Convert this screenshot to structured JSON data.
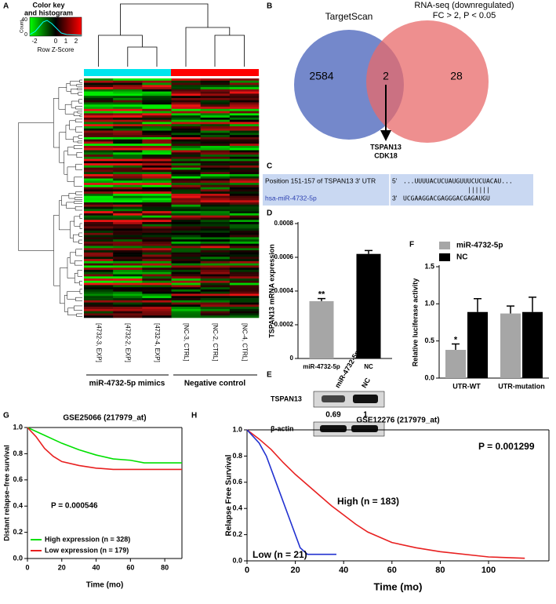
{
  "panel_labels": [
    "A",
    "B",
    "C",
    "D",
    "E",
    "F",
    "G",
    "H"
  ],
  "heatmap": {
    "color_key_title": [
      "Color key",
      "and histogram"
    ],
    "count_label": "Count",
    "count_ticks": [
      0,
      40
    ],
    "key_ticks": [
      "-2",
      "0",
      "1",
      "2"
    ],
    "key_label": "Row Z-Score",
    "columns": [
      "[4732-3, EXP]",
      "[4732-2, EXP]",
      "[4732-4, EXP]",
      "[NC-3, CTRL]",
      "[NC-2, CTRL]",
      "[NC-4, CTRL]"
    ],
    "groups": [
      "miR-4732-5p mimics",
      "Negative control"
    ]
  },
  "venn": {
    "left_label": "TargetScan",
    "right_label": [
      "RNA-seq (downregulated)",
      "FC > 2, P < 0.05"
    ],
    "left_only": 2584,
    "overlap": 2,
    "right_only": 28,
    "genes": [
      "TSPAN13",
      "CDK18"
    ]
  },
  "alignment": {
    "top_label": "Position 151-157 of TSPAN13 3' UTR",
    "top_end": "5'",
    "top_seq": "...UUUUACUCUAUGUUUCUCUACAU...",
    "pairing": "||||||",
    "bottom_label": "hsa-miR-4732-5p",
    "bottom_end": "3'",
    "bottom_seq": "UCGAAGGACGAGGGACGAGAUGU"
  },
  "western_blot": {
    "lanes": [
      "miR-4732-5p",
      "NC"
    ],
    "rows": [
      "TSPAN13",
      "β-actin"
    ],
    "ratios": [
      0.69,
      1
    ]
  },
  "chart_data": [
    {
      "type": "bar",
      "ylabel": "TSPAN13 mRNA expression",
      "categories": [
        "miR-4732-5p",
        "NC"
      ],
      "values": [
        0.00034,
        0.00062
      ],
      "errors": [
        1.5e-05,
        2e-05
      ],
      "colors": [
        "#a6a6a6",
        "#000000"
      ],
      "significance": [
        "**",
        null
      ],
      "ylim": [
        0,
        0.0008
      ],
      "yticks": [
        0,
        0.0002,
        0.0004,
        0.0006,
        0.0008
      ]
    },
    {
      "type": "bar",
      "ylabel": "Relative luciferase activity",
      "categories": [
        "UTR-WT",
        "UTR-mutation"
      ],
      "series": [
        {
          "name": "miR-4732-5p",
          "color": "#a6a6a6",
          "values": [
            0.38,
            0.87
          ],
          "errors": [
            0.08,
            0.1
          ],
          "significance": [
            "*",
            null
          ]
        },
        {
          "name": "NC",
          "color": "#000000",
          "values": [
            0.89,
            0.89
          ],
          "errors": [
            0.18,
            0.2
          ]
        }
      ],
      "ylim": [
        0,
        1.5
      ],
      "yticks": [
        {
          "value": 0,
          "label": "0.0"
        },
        0.5,
        {
          "value": 1,
          "label": "1.0"
        },
        1.5
      ],
      "legend": "upper left"
    },
    {
      "type": "line",
      "title": "GSE25066 (217979_at)",
      "xlabel": "Time (mo)",
      "ylabel": "Distant relapse–free survival",
      "annotation": "P = 0.000546",
      "series": [
        {
          "name": "High expression (n = 328)",
          "color": "#00e000",
          "x": [
            0,
            5,
            10,
            20,
            30,
            40,
            50,
            60,
            68,
            90
          ],
          "values": [
            1,
            0.97,
            0.94,
            0.88,
            0.83,
            0.79,
            0.76,
            0.75,
            0.73,
            0.73
          ]
        },
        {
          "name": "Low expression (n = 179)",
          "color": "#e82020",
          "x": [
            0,
            5,
            10,
            15,
            20,
            30,
            40,
            50,
            90
          ],
          "values": [
            1,
            0.93,
            0.84,
            0.78,
            0.74,
            0.71,
            0.69,
            0.68,
            0.68
          ]
        }
      ],
      "xlim": [
        0,
        90
      ],
      "xticks": [
        0,
        20,
        40,
        60,
        80
      ],
      "ylim": [
        0,
        1
      ],
      "yticks": [
        {
          "value": 0,
          "label": "0.0"
        },
        0.2,
        0.4,
        0.6,
        0.8,
        {
          "value": 1,
          "label": "1.0"
        }
      ],
      "legend": "lower left"
    },
    {
      "type": "line",
      "title": "GSE12276 (217979_at)",
      "xlabel": "Time (mo)",
      "ylabel": "Relapse Free Survival",
      "annotation": "P = 0.001299",
      "series": [
        {
          "name": "High (n = 183)",
          "color": "#e82020",
          "x": [
            0,
            5,
            10,
            15,
            20,
            25,
            30,
            35,
            40,
            45,
            50,
            60,
            70,
            80,
            100,
            115
          ],
          "values": [
            1,
            0.93,
            0.85,
            0.75,
            0.66,
            0.58,
            0.5,
            0.42,
            0.35,
            0.28,
            0.22,
            0.14,
            0.1,
            0.07,
            0.03,
            0.02
          ]
        },
        {
          "name": "Low (n = 21)",
          "color": "#2030d0",
          "x": [
            0,
            5,
            8,
            10,
            12,
            15,
            18,
            20,
            22,
            25,
            37
          ],
          "values": [
            1,
            0.9,
            0.8,
            0.7,
            0.6,
            0.45,
            0.3,
            0.2,
            0.1,
            0.05,
            0.05
          ]
        }
      ],
      "xlim": [
        0,
        125
      ],
      "xticks": [
        0,
        20,
        40,
        60,
        80,
        100
      ],
      "ylim": [
        0,
        1
      ],
      "yticks": [
        {
          "value": 0,
          "label": "0.0"
        },
        0.2,
        0.4,
        0.6,
        0.8,
        {
          "value": 1,
          "label": "1.0"
        }
      ]
    }
  ]
}
